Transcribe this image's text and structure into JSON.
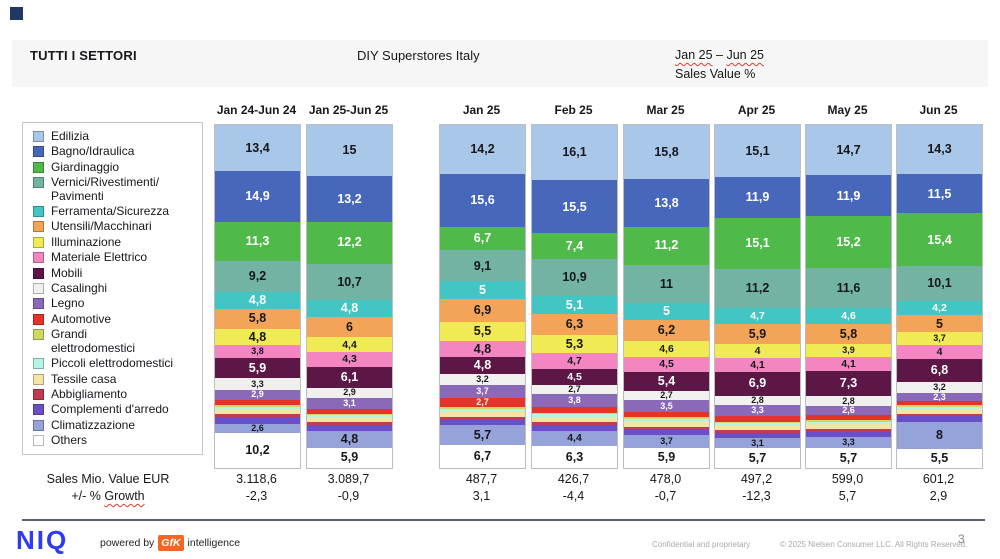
{
  "slide": {
    "header": {
      "left_title": "TUTTI I SETTORI",
      "center_title": "DIY Superstores Italy",
      "right_from": "Jan 25",
      "right_dash": " – ",
      "right_to": "Jun 25",
      "right_line2": "Sales Value %"
    },
    "left_axis": {
      "line1": "Sales Mio. Value EUR",
      "line2_prefix": "+/- % ",
      "line2_word": "Growth"
    },
    "footer": {
      "brand": "NIQ",
      "powered_by": "powered by",
      "gfk": "GfK",
      "intelligence": "intelligence",
      "confidential": "Confidential and proprietary",
      "copyright": "© 2025 Nielsen Consumer LLC. All Rights Reserved.",
      "page_number": "3"
    },
    "accent_colors": {
      "corner_square": "#1f3864",
      "niq_blue": "#2e3cf0",
      "gfk_orange": "#f26822",
      "spellcheck_red": "#e03c31"
    }
  },
  "chart_data": {
    "type": "bar",
    "stacked": true,
    "title": "DIY Superstores Italy",
    "unit": "Sales Value %",
    "ylim": [
      0,
      100
    ],
    "legend_position": "left",
    "sectors": [
      {
        "label": "Edilizia",
        "color": "#a9c7e8",
        "text_color": "#17171c"
      },
      {
        "label": "Bagno/Idraulica",
        "color": "#4767bb",
        "text_color": "#ffffff"
      },
      {
        "label": "Giardinaggio",
        "color": "#4fb94a",
        "text_color": "#ffffff"
      },
      {
        "label": "Vernici/Rivestimenti/\nPavimenti",
        "color": "#72b3a3",
        "text_color": "#17171c"
      },
      {
        "label": "Ferramenta/Sicurezza",
        "color": "#43c6c3",
        "text_color": "#ffffff"
      },
      {
        "label": "Utensili/Macchinari",
        "color": "#f4a458",
        "text_color": "#17171c"
      },
      {
        "label": "Illuminazione",
        "color": "#f0ea55",
        "text_color": "#17171c"
      },
      {
        "label": "Materiale Elettrico",
        "color": "#f386c0",
        "text_color": "#17171c"
      },
      {
        "label": "Mobili",
        "color": "#5d1746",
        "text_color": "#ffffff"
      },
      {
        "label": "Casalinghi",
        "color": "#f0f0ee",
        "text_color": "#17171c"
      },
      {
        "label": "Legno",
        "color": "#8a69b9",
        "text_color": "#ffffff"
      },
      {
        "label": "Automotive",
        "color": "#e6332a",
        "text_color": "#ffffff"
      },
      {
        "label": "Grandi\nelettrodomestici",
        "color": "#ced964",
        "text_color": "#17171c"
      },
      {
        "label": "Piccoli elettrodomestici",
        "color": "#b4f4e4",
        "text_color": "#17171c"
      },
      {
        "label": "Tessile casa",
        "color": "#f4e5a6",
        "text_color": "#17171c"
      },
      {
        "label": "Abbigliamento",
        "color": "#c13b52",
        "text_color": "#ffffff"
      },
      {
        "label": "Complementi d'arredo",
        "color": "#6b4fc8",
        "text_color": "#ffffff"
      },
      {
        "label": "Climatizzazione",
        "color": "#95a3da",
        "text_color": "#17171c"
      },
      {
        "label": "Others",
        "color": "#ffffff",
        "text_color": "#17171c"
      }
    ],
    "columns": [
      {
        "name": "Jan 24-Jun 24",
        "values": [
          13.4,
          14.9,
          11.3,
          9.2,
          4.8,
          5.8,
          4.8,
          3.8,
          5.9,
          3.3,
          2.9,
          1.5,
          0.5,
          0.8,
          1.5,
          0.8,
          2.0,
          2.6,
          10.2
        ],
        "labels": [
          "13,4",
          "14,9",
          "11,3",
          "9,2",
          "4,8",
          "5,8",
          "4,8",
          "3,8",
          "5,9",
          "3,3",
          "2,9",
          "",
          "",
          "",
          "",
          "",
          "",
          "2,6",
          "10,2"
        ],
        "sales_mio_eur": "3.118,6",
        "growth_pct": "-2,3"
      },
      {
        "name": "Jan 25-Jun 25",
        "values": [
          15,
          13.2,
          12.2,
          10.7,
          4.8,
          6,
          4.4,
          4.3,
          6.1,
          2.9,
          3.1,
          1.5,
          0.4,
          0.7,
          1.4,
          0.7,
          1.9,
          4.8,
          5.9
        ],
        "labels": [
          "15",
          "13,2",
          "12,2",
          "10,7",
          "4,8",
          "6",
          "4,4",
          "4,3",
          "6,1",
          "2,9",
          "3,1",
          "",
          "",
          "",
          "",
          "",
          "",
          "4,8",
          "5,9"
        ],
        "sales_mio_eur": "3.089,7",
        "growth_pct": "-0,9"
      },
      {
        "name": "Jan 25",
        "values": [
          14.2,
          15.6,
          6.7,
          9.1,
          5,
          6.9,
          5.5,
          4.8,
          4.8,
          3.2,
          3.7,
          2.7,
          0.5,
          0.9,
          1.5,
          0.8,
          1.7,
          5.7,
          6.7
        ],
        "labels": [
          "14,2",
          "15,6",
          "6,7",
          "9,1",
          "5",
          "6,9",
          "5,5",
          "4,8",
          "4,8",
          "3,2",
          "3,7",
          "2,7",
          "",
          "",
          "",
          "",
          "",
          "5,7",
          "6,7"
        ],
        "sales_mio_eur": "487,7",
        "growth_pct": "3,1"
      },
      {
        "name": "Feb 25",
        "values": [
          16.1,
          15.5,
          7.4,
          10.9,
          5.1,
          6.3,
          5.3,
          4.7,
          4.5,
          2.7,
          3.8,
          1.6,
          0.5,
          0.8,
          1.5,
          0.8,
          1.8,
          4.4,
          6.3
        ],
        "labels": [
          "16,1",
          "15,5",
          "7,4",
          "10,9",
          "5,1",
          "6,3",
          "5,3",
          "4,7",
          "4,5",
          "2,7",
          "3,8",
          "",
          "",
          "",
          "",
          "",
          "",
          "4,4",
          "6,3"
        ],
        "sales_mio_eur": "426,7",
        "growth_pct": "-4,4"
      },
      {
        "name": "Mar 25",
        "values": [
          15.8,
          13.8,
          11.2,
          11,
          5,
          6.2,
          4.6,
          4.5,
          5.4,
          2.7,
          3.5,
          1.6,
          0.5,
          0.8,
          1.5,
          0.7,
          1.6,
          3.7,
          5.9
        ],
        "labels": [
          "15,8",
          "13,8",
          "11,2",
          "11",
          "5",
          "6,2",
          "4,6",
          "4,5",
          "5,4",
          "2,7",
          "3,5",
          "",
          "",
          "",
          "",
          "",
          "",
          "3,7",
          "5,9"
        ],
        "sales_mio_eur": "478,0",
        "growth_pct": "-0,7"
      },
      {
        "name": "Apr 25",
        "values": [
          15.1,
          11.9,
          15.1,
          11.2,
          4.7,
          5.9,
          4,
          4.1,
          6.9,
          2.8,
          3.3,
          1.5,
          0.4,
          0.7,
          1.4,
          0.7,
          1.5,
          3.1,
          5.7
        ],
        "labels": [
          "15,1",
          "11,9",
          "15,1",
          "11,2",
          "4,7",
          "5,9",
          "4",
          "4,1",
          "6,9",
          "2,8",
          "3,3",
          "",
          "",
          "",
          "",
          "",
          "",
          "3,1",
          "5,7"
        ],
        "sales_mio_eur": "497,2",
        "growth_pct": "-12,3"
      },
      {
        "name": "May 25",
        "values": [
          14.7,
          11.9,
          15.2,
          11.6,
          4.6,
          5.8,
          3.9,
          4.1,
          7.3,
          2.8,
          2.6,
          1.5,
          0.5,
          0.7,
          1.5,
          0.7,
          1.6,
          3.3,
          5.7
        ],
        "labels": [
          "14,7",
          "11,9",
          "15,2",
          "11,6",
          "4,6",
          "5,8",
          "3,9",
          "4,1",
          "7,3",
          "2,8",
          "2,6",
          "",
          "",
          "",
          "",
          "",
          "",
          "3,3",
          "5,7"
        ],
        "sales_mio_eur": "599,0",
        "growth_pct": "5,7"
      },
      {
        "name": "Jun 25",
        "values": [
          14.3,
          11.5,
          15.4,
          10.1,
          4.2,
          5,
          3.7,
          4,
          6.8,
          3.2,
          2.3,
          1.3,
          0.4,
          0.7,
          1.5,
          0.6,
          1.5,
          8,
          5.5
        ],
        "labels": [
          "14,3",
          "11,5",
          "15,4",
          "10,1",
          "4,2",
          "5",
          "3,7",
          "4",
          "6,8",
          "3,2",
          "2,3",
          "",
          "",
          "",
          "",
          "",
          "",
          "8",
          "5,5"
        ],
        "sales_mio_eur": "601,2",
        "growth_pct": "2,9"
      }
    ]
  }
}
